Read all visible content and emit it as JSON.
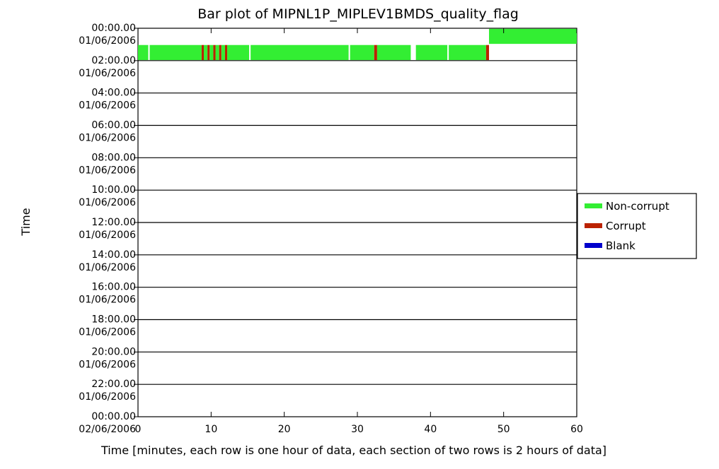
{
  "chart_data": {
    "type": "bar",
    "title": "Bar plot of MIPNL1P_MIPLEV1BMDS_quality_flag",
    "xlabel": "Time [minutes, each row is one hour of data, each section of two rows is 2 hours of data]",
    "ylabel": "Time",
    "xlim": [
      0,
      60
    ],
    "x_ticks": [
      "0",
      "10",
      "20",
      "30",
      "40",
      "50",
      "60"
    ],
    "y_ticks": [
      {
        "time": "00:00.00",
        "date": "01/06/2006"
      },
      {
        "time": "02:00.00",
        "date": "01/06/2006"
      },
      {
        "time": "04:00.00",
        "date": "01/06/2006"
      },
      {
        "time": "06:00.00",
        "date": "01/06/2006"
      },
      {
        "time": "08:00.00",
        "date": "01/06/2006"
      },
      {
        "time": "10:00.00",
        "date": "01/06/2006"
      },
      {
        "time": "12:00.00",
        "date": "01/06/2006"
      },
      {
        "time": "14:00.00",
        "date": "01/06/2006"
      },
      {
        "time": "16:00.00",
        "date": "01/06/2006"
      },
      {
        "time": "18:00.00",
        "date": "01/06/2006"
      },
      {
        "time": "20:00.00",
        "date": "01/06/2006"
      },
      {
        "time": "22:00.00",
        "date": "01/06/2006"
      },
      {
        "time": "00:00.00",
        "date": "02/06/2006"
      }
    ],
    "grid": true,
    "legend": {
      "placement": "right",
      "entries": [
        {
          "name": "Non-corrupt",
          "color": "#33ee33"
        },
        {
          "name": "Corrupt",
          "color": "#bb2200"
        },
        {
          "name": "Blank",
          "color": "#0000cc"
        }
      ]
    },
    "segments": [
      {
        "row": 0,
        "start": 48.0,
        "end": 60.0,
        "status": "Non-corrupt"
      },
      {
        "row": 1,
        "start": 0.0,
        "end": 1.4,
        "status": "Non-corrupt"
      },
      {
        "row": 1,
        "start": 1.6,
        "end": 8.7,
        "status": "Non-corrupt"
      },
      {
        "row": 1,
        "start": 8.7,
        "end": 9.0,
        "status": "Corrupt"
      },
      {
        "row": 1,
        "start": 9.0,
        "end": 9.5,
        "status": "Non-corrupt"
      },
      {
        "row": 1,
        "start": 9.5,
        "end": 9.8,
        "status": "Corrupt"
      },
      {
        "row": 1,
        "start": 9.8,
        "end": 10.3,
        "status": "Non-corrupt"
      },
      {
        "row": 1,
        "start": 10.3,
        "end": 10.6,
        "status": "Corrupt"
      },
      {
        "row": 1,
        "start": 10.6,
        "end": 11.1,
        "status": "Non-corrupt"
      },
      {
        "row": 1,
        "start": 11.1,
        "end": 11.4,
        "status": "Corrupt"
      },
      {
        "row": 1,
        "start": 11.4,
        "end": 11.9,
        "status": "Non-corrupt"
      },
      {
        "row": 1,
        "start": 11.9,
        "end": 12.2,
        "status": "Corrupt"
      },
      {
        "row": 1,
        "start": 12.2,
        "end": 15.2,
        "status": "Non-corrupt"
      },
      {
        "row": 1,
        "start": 15.4,
        "end": 28.8,
        "status": "Non-corrupt"
      },
      {
        "row": 1,
        "start": 29.0,
        "end": 32.3,
        "status": "Non-corrupt"
      },
      {
        "row": 1,
        "start": 32.3,
        "end": 32.7,
        "status": "Corrupt"
      },
      {
        "row": 1,
        "start": 32.7,
        "end": 37.3,
        "status": "Non-corrupt"
      },
      {
        "row": 1,
        "start": 38.0,
        "end": 42.3,
        "status": "Non-corrupt"
      },
      {
        "row": 1,
        "start": 42.5,
        "end": 47.6,
        "status": "Non-corrupt"
      },
      {
        "row": 1,
        "start": 47.6,
        "end": 48.0,
        "status": "Corrupt"
      }
    ]
  }
}
